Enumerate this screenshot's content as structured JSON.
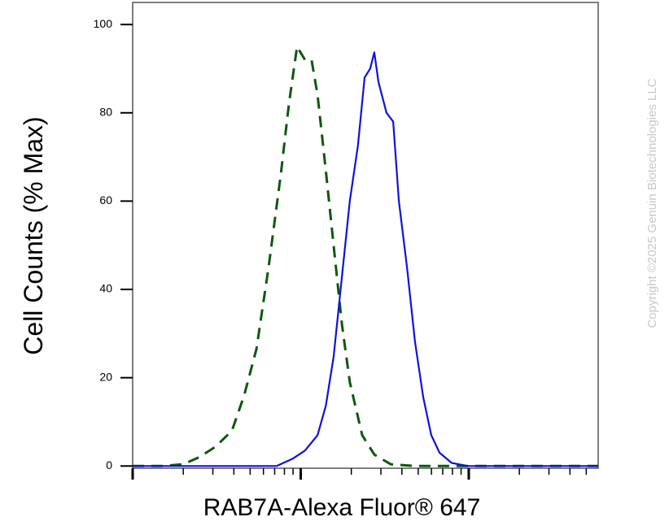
{
  "chart_data": {
    "type": "line",
    "xlabel": "RAB7A-Alexa Fluor® 647",
    "ylabel": "Cell Counts (% Max)",
    "watermark": "Copyright ©2025 Genuin Biotechnologies LLC",
    "xscale": "log",
    "xlim": [
      1,
      589
    ],
    "xticks": [
      1,
      10,
      100
    ],
    "xminorticks": [
      2,
      3,
      4,
      5,
      6,
      7,
      8,
      9,
      20,
      30,
      40,
      50,
      60,
      70,
      80,
      90,
      200,
      300,
      400,
      500
    ],
    "ylim": [
      -0.5,
      105
    ],
    "yticks": [
      0,
      20,
      40,
      60,
      80,
      100
    ],
    "series": [
      {
        "color": "#0a5a0a",
        "dashed": true,
        "x": [
          1,
          1.51,
          2.0,
          2.49,
          3.12,
          3.9,
          4.61,
          5.45,
          6.44,
          7.61,
          8.51,
          9.51,
          10.6,
          11.6,
          12.6,
          14.1,
          15.7,
          17.6,
          19.6,
          23.2,
          27.4,
          34.3,
          47.9,
          589
        ],
        "values": [
          0,
          0,
          0.4,
          2,
          4.4,
          8,
          16,
          26.5,
          45,
          66,
          82,
          95,
          92,
          92,
          84,
          67,
          50,
          32,
          19,
          7,
          2.6,
          0.4,
          0,
          0
        ]
      },
      {
        "color": "#1010e0",
        "dashed": false,
        "x": [
          1,
          7.2,
          9.0,
          10.6,
          12.6,
          14.1,
          15.7,
          17.6,
          19.6,
          21.9,
          24.0,
          25.9,
          27.4,
          29.0,
          32.4,
          35.5,
          38.4,
          42.9,
          47.9,
          53.6,
          59.8,
          67.0,
          79.1,
          98.9,
          589
        ],
        "values": [
          0,
          0,
          1.7,
          3.5,
          7,
          13.6,
          24.7,
          43,
          60,
          72.6,
          88,
          90,
          93.7,
          87,
          80,
          78,
          60,
          45,
          28,
          15.5,
          7,
          3,
          0.7,
          0,
          0
        ]
      }
    ]
  }
}
